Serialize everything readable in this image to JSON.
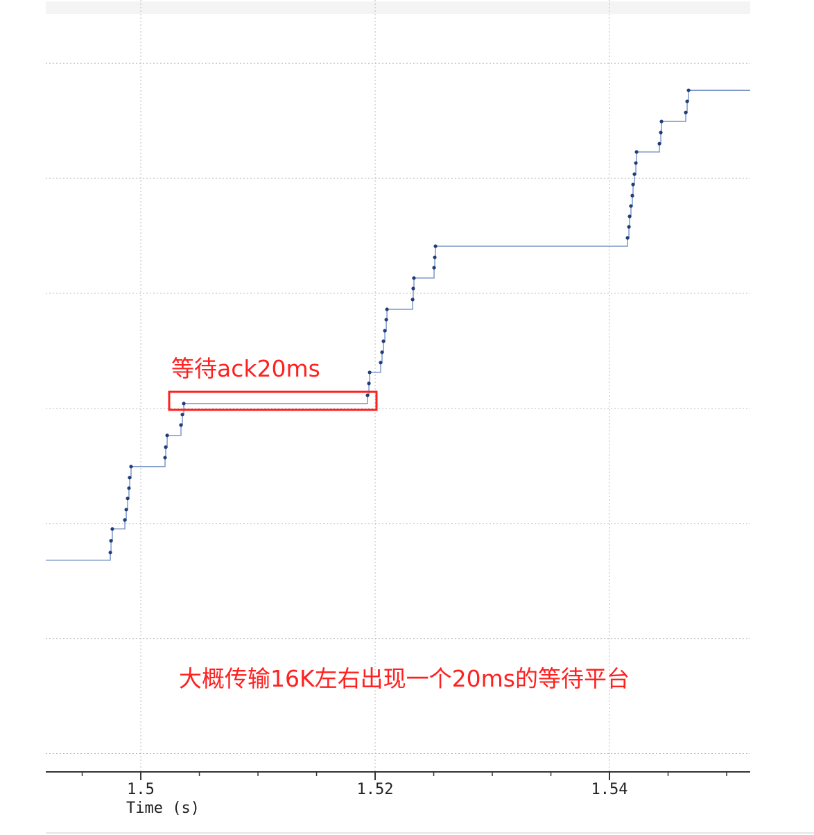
{
  "chart_data": {
    "type": "line",
    "step": "post",
    "x_label": "Time (s)",
    "xlim": [
      1.49189,
      1.55201
    ],
    "ylim": [
      -0.16,
      6.55
    ],
    "xticks": [
      1.5,
      1.52,
      1.54
    ],
    "xminorticks": [
      1.495,
      1.505,
      1.51,
      1.515,
      1.525,
      1.53,
      1.535,
      1.545,
      1.55
    ],
    "yticks": [
      0,
      1,
      2,
      3,
      4,
      5,
      6
    ],
    "grid": true,
    "series": [
      {
        "color": "#7d97c8",
        "marker_color": "#1f3d78",
        "x": [
          1.49,
          1.4974,
          1.49746,
          1.49757,
          1.49864,
          1.49876,
          1.49888,
          1.49899,
          1.49905,
          1.49917,
          1.50207,
          1.50213,
          1.50225,
          1.50343,
          1.50355,
          1.50367,
          1.51935,
          1.51947,
          1.51953,
          1.52047,
          1.52059,
          1.52071,
          1.52083,
          1.52095,
          1.52101,
          1.5232,
          1.52325,
          1.52331,
          1.52503,
          1.52509,
          1.52515,
          1.54154,
          1.54166,
          1.54172,
          1.54183,
          1.54195,
          1.54201,
          1.54213,
          1.54225,
          1.54231,
          1.54426,
          1.54438,
          1.54444,
          1.54651,
          1.54663,
          1.54675
        ],
        "values": [
          1.68,
          1.747,
          1.849,
          1.952,
          2.03,
          2.12,
          2.217,
          2.307,
          2.398,
          2.494,
          2.572,
          2.663,
          2.765,
          2.855,
          2.946,
          3.042,
          3.114,
          3.217,
          3.313,
          3.398,
          3.488,
          3.584,
          3.675,
          3.771,
          3.861,
          3.946,
          4.042,
          4.133,
          4.223,
          4.313,
          4.41,
          4.482,
          4.578,
          4.669,
          4.759,
          4.849,
          4.946,
          5.036,
          5.133,
          5.229,
          5.301,
          5.398,
          5.494,
          5.572,
          5.669,
          5.765
        ]
      }
    ],
    "annotations": [
      {
        "text": "等待ack20ms"
      },
      {
        "text": "大概传输16K左右出现一个20ms的等待平台"
      }
    ]
  }
}
